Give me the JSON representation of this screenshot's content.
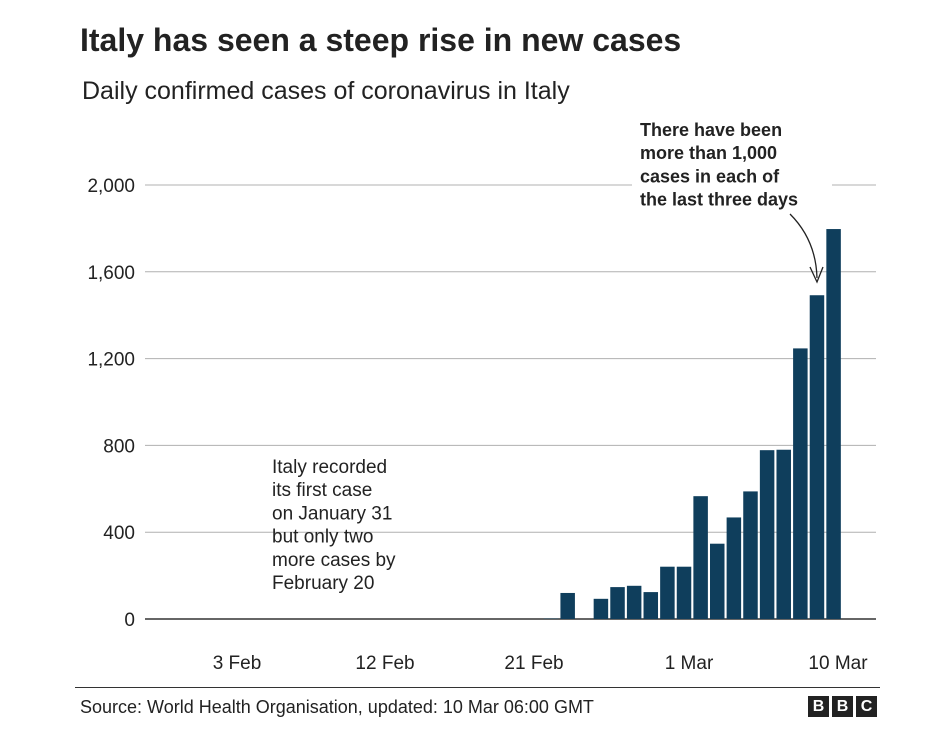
{
  "header": {
    "title": "Italy has seen a steep rise in new cases",
    "subtitle": "Daily confirmed cases of coronavirus in Italy"
  },
  "footer": {
    "source": "Source: World Health Organisation, updated: 10 Mar 06:00 GMT",
    "logo_letters": [
      "B",
      "B",
      "C"
    ]
  },
  "colors": {
    "bar": "#0f3e5c",
    "grid": "#b0b0b0",
    "text": "#222222"
  },
  "chart_data": {
    "type": "bar",
    "title": "Italy has seen a steep rise in new cases",
    "subtitle": "Daily confirmed cases of coronavirus in Italy",
    "xlabel": "",
    "ylabel": "",
    "ylim": [
      0,
      2000
    ],
    "yticks": [
      0,
      400,
      800,
      1200,
      1600,
      2000
    ],
    "ytick_labels": [
      "0",
      "400",
      "800",
      "1,200",
      "1,600",
      "2,000"
    ],
    "x_tick_labels": [
      {
        "date": "3 Feb",
        "label": "3 Feb"
      },
      {
        "date": "12 Feb",
        "label": "12 Feb"
      },
      {
        "date": "21 Feb",
        "label": "21 Feb"
      },
      {
        "date": "1 Mar",
        "label": "1 Mar"
      },
      {
        "date": "10 Mar",
        "label": "10 Mar"
      }
    ],
    "grid": true,
    "categories": [
      "21 Feb",
      "22 Feb",
      "23 Feb",
      "24 Feb",
      "25 Feb",
      "26 Feb",
      "27 Feb",
      "28 Feb",
      "29 Feb",
      "1 Mar",
      "2 Mar",
      "3 Mar",
      "4 Mar",
      "5 Mar",
      "6 Mar",
      "7 Mar",
      "8 Mar",
      "9 Mar",
      "10 Mar"
    ],
    "values": [
      2,
      120,
      0,
      93,
      147,
      153,
      124,
      241,
      241,
      566,
      347,
      468,
      588,
      778,
      780,
      1247,
      1492,
      1797,
      0
    ],
    "annotations": [
      {
        "lines": [
          "Italy recorded",
          "its first case",
          "on January 31",
          "but only two",
          "more cases by",
          "February 20"
        ],
        "bold": false
      },
      {
        "lines": [
          "There have been",
          "more than 1,000",
          "cases in each of",
          "the last three days"
        ],
        "bold": true
      }
    ]
  }
}
